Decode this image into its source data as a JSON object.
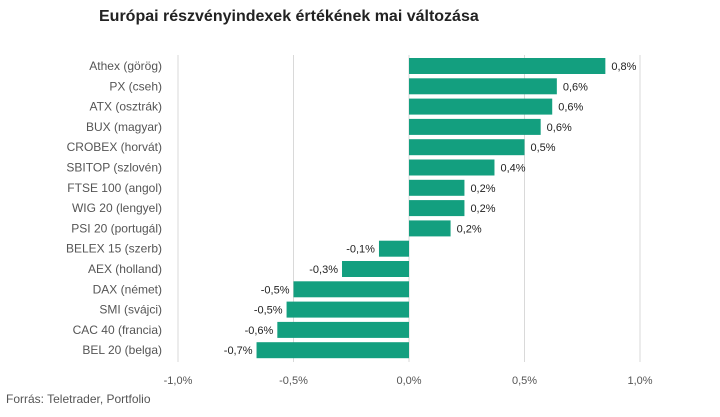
{
  "chart_data": {
    "type": "bar",
    "orientation": "horizontal",
    "title": "Európai részvényindexek értékének mai változása",
    "source": "Forrás: Teletrader, Portfolio",
    "categories": [
      "Athex (görög)",
      "PX (cseh)",
      "ATX (osztrák)",
      "BUX (magyar)",
      "CROBEX (horvát)",
      "SBITOP (szlovén)",
      "FTSE 100 (angol)",
      "WIG 20 (lengyel)",
      "PSI 20 (portugál)",
      "BELEX 15 (szerb)",
      "AEX (holland)",
      "DAX (német)",
      "SMI (svájci)",
      "CAC 40 (francia)",
      "BEL 20 (belga)"
    ],
    "values": [
      0.85,
      0.64,
      0.62,
      0.57,
      0.5,
      0.37,
      0.24,
      0.24,
      0.18,
      -0.13,
      -0.29,
      -0.5,
      -0.53,
      -0.57,
      -0.66
    ],
    "value_labels": [
      "0,8%",
      "0,6%",
      "0,6%",
      "0,6%",
      "0,5%",
      "0,4%",
      "0,2%",
      "0,2%",
      "0,2%",
      "-0,1%",
      "-0,3%",
      "-0,5%",
      "-0,5%",
      "-0,6%",
      "-0,7%"
    ],
    "xlim": [
      -1.0,
      1.0
    ],
    "xticks": [
      -1.0,
      -0.5,
      0.0,
      0.5,
      1.0
    ],
    "xtick_labels": [
      "-1,0%",
      "-0,5%",
      "0,0%",
      "0,5%",
      "1,0%"
    ],
    "grid": "vertical",
    "bar_color": "#139f7f"
  }
}
